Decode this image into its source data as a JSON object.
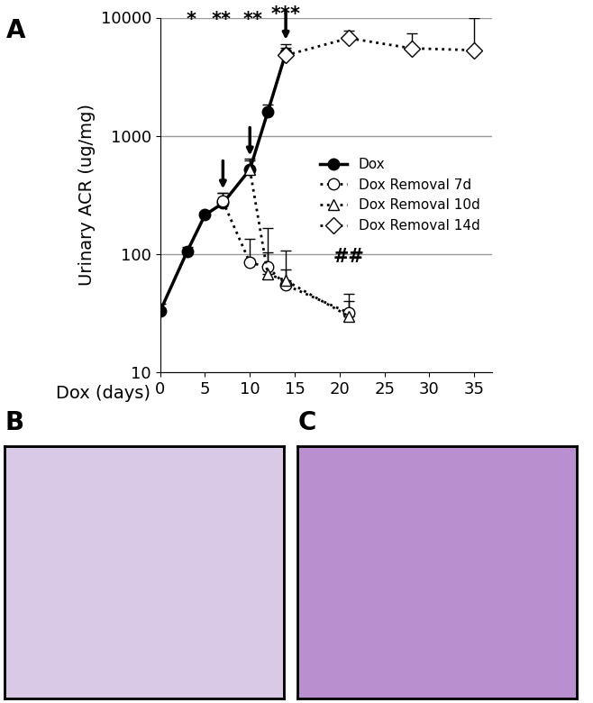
{
  "chart_data": {
    "type": "line",
    "panel_label": "A",
    "xlabel": "Dox (days)",
    "ylabel": "Urinary ACR (ug/mg)",
    "log": "y",
    "grid": true,
    "legend": "center right",
    "xlim": [
      0,
      37
    ],
    "xticks": [
      0,
      5,
      10,
      15,
      20,
      25,
      30,
      35
    ],
    "ylim": [
      10,
      10000
    ],
    "yticks": [
      10,
      100,
      1000,
      10000
    ],
    "series": [
      {
        "name": "Dox",
        "color": "#000000",
        "marker": "o",
        "line_style": "solid",
        "x": [
          0,
          3,
          5,
          7,
          10,
          12,
          14
        ],
        "values": [
          33,
          105,
          215,
          270,
          520,
          1600,
          5000
        ],
        "errors": [
          5,
          10,
          15,
          60,
          120,
          250,
          1000
        ]
      },
      {
        "name": "Dox Removal 7d",
        "color": "#000000",
        "marker": "o",
        "line_style": "dotted",
        "x": [
          7,
          10,
          12,
          14,
          21
        ],
        "values": [
          280,
          85,
          78,
          55,
          32
        ],
        "errors": [
          50,
          50,
          25,
          20,
          14
        ]
      },
      {
        "name": "Dox Removal 10d",
        "color": "#000000",
        "marker": "^",
        "line_style": "dotted",
        "x": [
          10,
          12,
          14,
          21
        ],
        "values": [
          520,
          68,
          60,
          30
        ],
        "errors": [
          100,
          100,
          48,
          10
        ]
      },
      {
        "name": "Dox Removal 14d",
        "color": "#000000",
        "marker": "D",
        "line_style": "dotted",
        "x": [
          14,
          21,
          28,
          35
        ],
        "values": [
          4800,
          6700,
          5500,
          5300
        ],
        "errors": [
          800,
          1000,
          1900,
          4700
        ]
      }
    ],
    "annotations": [
      {
        "text": "*",
        "x": 3.5,
        "y": 8000
      },
      {
        "text": "**",
        "x": 6.8,
        "y": 8000
      },
      {
        "text": "**",
        "x": 10.3,
        "y": 8000
      },
      {
        "text": "***",
        "x": 14,
        "y": 9000
      },
      {
        "text": "##",
        "x": 21,
        "y": 80
      }
    ],
    "arrows": [
      {
        "x": 7,
        "y": 340
      },
      {
        "x": 10,
        "y": 650
      },
      {
        "x": 14,
        "y": 6200
      }
    ]
  },
  "images": [
    {
      "panel_label": "B"
    },
    {
      "panel_label": "C"
    }
  ]
}
